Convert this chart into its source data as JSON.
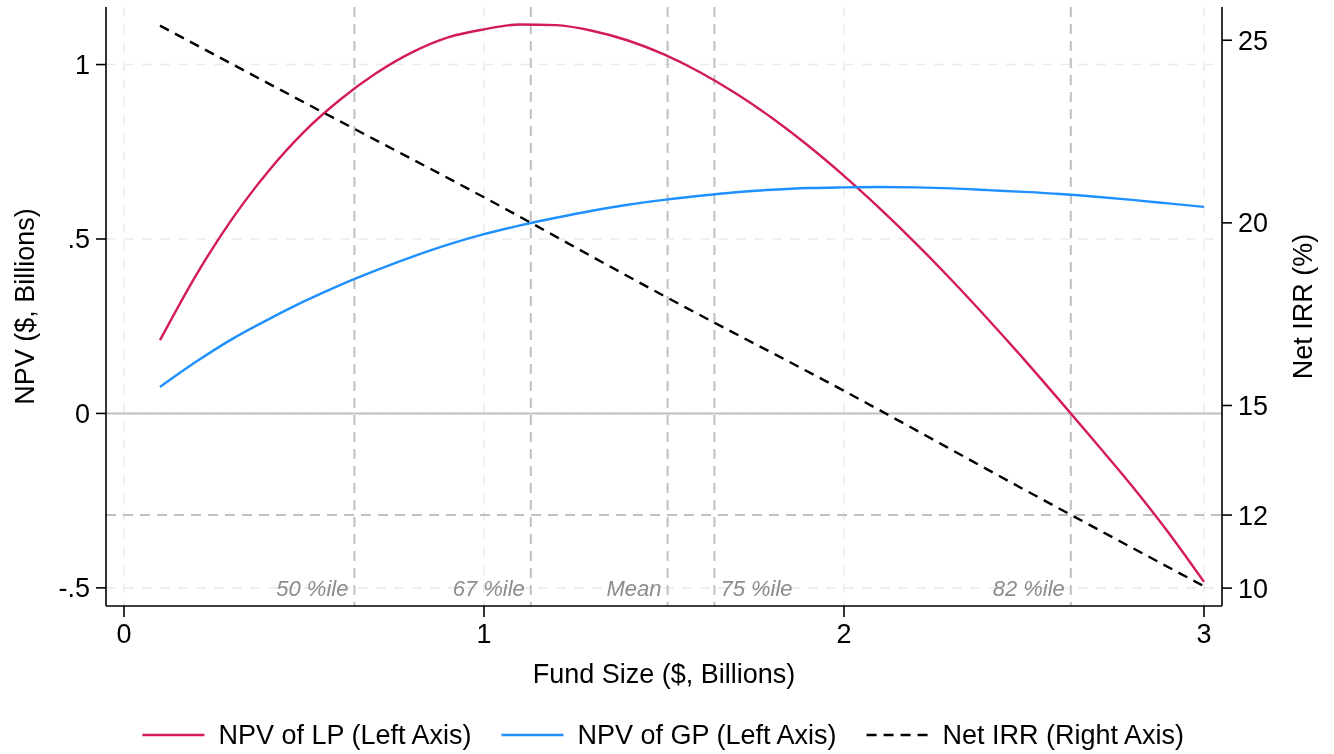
{
  "chart_data": {
    "type": "line",
    "xlabel": "Fund Size ($, Billions)",
    "ylabel": "NPV ($, Billions)",
    "y2label": "Net IRR (%)",
    "x": [
      0.1,
      0.2,
      0.3,
      0.4,
      0.5,
      0.6,
      0.7,
      0.8,
      0.9,
      1.0,
      1.1,
      1.2,
      1.3,
      1.4,
      1.5,
      1.6,
      1.7,
      1.8,
      1.9,
      2.0,
      2.1,
      2.2,
      2.3,
      2.4,
      2.5,
      2.6,
      2.7,
      2.8,
      2.9,
      3.0
    ],
    "xlim": [
      -0.05,
      3.05
    ],
    "xticks": [
      0,
      1,
      2,
      3
    ],
    "ylim": [
      -0.552,
      1.165
    ],
    "yticks": [
      {
        "value": -0.5,
        "label": "-.5"
      },
      0,
      {
        "value": 0.5,
        "label": ".5"
      },
      1
    ],
    "y2lim": [
      9.51,
      25.91
    ],
    "y2ticks": [
      10,
      12,
      15,
      20,
      25
    ],
    "grid": true,
    "legend": "bottom",
    "series": [
      {
        "name": "NPV of LP (Left Axis)",
        "color": "#d31a5c",
        "values": [
          0.21,
          0.396,
          0.557,
          0.693,
          0.807,
          0.899,
          0.975,
          1.035,
          1.078,
          1.101,
          1.115,
          1.113,
          1.097,
          1.069,
          1.029,
          0.978,
          0.917,
          0.847,
          0.768,
          0.681,
          0.587,
          0.487,
          0.381,
          0.27,
          0.155,
          0.036,
          -0.085,
          -0.208,
          -0.34,
          -0.483
        ]
      },
      {
        "name": "NPV of GP (Left Axis)",
        "color": "#1e90ff",
        "values": [
          0.076,
          0.148,
          0.213,
          0.269,
          0.321,
          0.368,
          0.41,
          0.449,
          0.484,
          0.514,
          0.539,
          0.561,
          0.581,
          0.598,
          0.612,
          0.624,
          0.634,
          0.641,
          0.646,
          0.648,
          0.649,
          0.648,
          0.645,
          0.64,
          0.635,
          0.629,
          0.621,
          0.612,
          0.602,
          0.592
        ]
      },
      {
        "name": "Net IRR (Right Axis)",
        "color": "#000000",
        "axis": "y2",
        "line_style": "dashed",
        "x": [
          0.1,
          0.5,
          1.0,
          1.5,
          2.0,
          2.5,
          3.0
        ],
        "values": [
          25.4,
          23.3,
          20.7,
          18.0,
          15.4,
          12.7,
          10.05
        ]
      }
    ],
    "ref_lines": [
      {
        "axis": "x",
        "value": 0.64,
        "label": "50 %ile",
        "color": "#c0c0c0",
        "line_style": "dashed"
      },
      {
        "axis": "x",
        "value": 1.13,
        "label": "67 %ile",
        "color": "#c0c0c0",
        "line_style": "dashed"
      },
      {
        "axis": "x",
        "value": 1.51,
        "label": "Mean",
        "color": "#c0c0c0",
        "line_style": "dashed"
      },
      {
        "axis": "x",
        "value": 1.64,
        "label": "75 %ile",
        "color": "#c0c0c0",
        "line_style": "dashed"
      },
      {
        "axis": "x",
        "value": 2.63,
        "label": "82 %ile",
        "color": "#c0c0c0",
        "line_style": "dashed"
      },
      {
        "axis": "y",
        "value": 0,
        "color": "#c0c0c0",
        "line_style": "solid"
      },
      {
        "axis": "y2",
        "value": 12,
        "color": "#c0c0c0",
        "line_style": "dashed"
      }
    ]
  }
}
